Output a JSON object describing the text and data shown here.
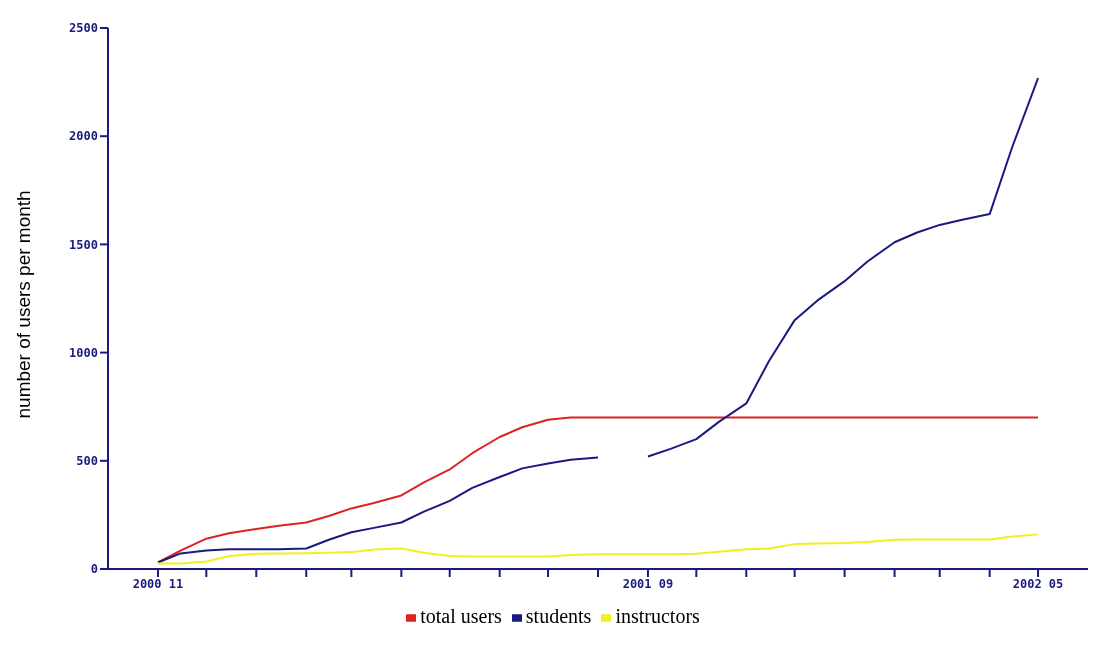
{
  "chart_data": {
    "type": "line",
    "ylabel": "number of users per month",
    "x": [
      "2000-11-01",
      "2000-11-15",
      "2000-12-01",
      "2000-12-15",
      "2001-01-01",
      "2001-01-15",
      "2001-02-01",
      "2001-02-15",
      "2001-03-01",
      "2001-03-15",
      "2001-04-01",
      "2001-04-15",
      "2001-05-01",
      "2001-05-15",
      "2001-06-01",
      "2001-06-15",
      "2001-07-01",
      "2001-07-15",
      "2001-08-01",
      "2001-08-15",
      "2001-09-01",
      "2001-09-15",
      "2001-10-01",
      "2001-10-15",
      "2001-11-01",
      "2001-11-15",
      "2001-12-01",
      "2001-12-15",
      "2002-01-01",
      "2002-01-15",
      "2002-02-01",
      "2002-02-15",
      "2002-03-01",
      "2002-03-15",
      "2002-04-01",
      "2002-04-15",
      "2002-05-01"
    ],
    "series": [
      {
        "name": "total users",
        "color": "#dd2222",
        "values": [
          30,
          85,
          140,
          165,
          185,
          200,
          215,
          245,
          280,
          305,
          340,
          400,
          460,
          535,
          610,
          655,
          690,
          700,
          700,
          700,
          700,
          700,
          700,
          700,
          700,
          700,
          700,
          700,
          700,
          700,
          700,
          700,
          700,
          700,
          700,
          700,
          700
        ]
      },
      {
        "name": "students",
        "color": "#1a1a80",
        "values": [
          30,
          72,
          85,
          91,
          91,
          91,
          95,
          135,
          170,
          190,
          215,
          265,
          315,
          375,
          425,
          465,
          488,
          505,
          515,
          null,
          520,
          555,
          600,
          680,
          765,
          960,
          1150,
          1240,
          1330,
          1420,
          1510,
          1555,
          1590,
          1614,
          1640,
          1950,
          2268
        ]
      },
      {
        "name": "instructors",
        "color": "#f0f020",
        "values": [
          25,
          25,
          35,
          60,
          70,
          72,
          73,
          75,
          78,
          90,
          95,
          75,
          60,
          58,
          58,
          58,
          58,
          65,
          68,
          68,
          68,
          68,
          70,
          80,
          91,
          95,
          115,
          118,
          120,
          125,
          135,
          136,
          136,
          136,
          136,
          150,
          160
        ]
      }
    ],
    "xlim": [
      "2000-10-01",
      "2002-06-01"
    ],
    "xticks": [
      {
        "value": "2000-11-01",
        "label": "2000 11"
      },
      {
        "value": "2000-12-01",
        "label": null
      },
      {
        "value": "2001-01-01",
        "label": null
      },
      {
        "value": "2001-02-01",
        "label": null
      },
      {
        "value": "2001-03-01",
        "label": null
      },
      {
        "value": "2001-04-01",
        "label": null
      },
      {
        "value": "2001-05-01",
        "label": null
      },
      {
        "value": "2001-06-01",
        "label": null
      },
      {
        "value": "2001-07-01",
        "label": null
      },
      {
        "value": "2001-08-01",
        "label": null
      },
      {
        "value": "2001-09-01",
        "label": "2001 09"
      },
      {
        "value": "2001-10-01",
        "label": null
      },
      {
        "value": "2001-11-01",
        "label": null
      },
      {
        "value": "2001-12-01",
        "label": null
      },
      {
        "value": "2002-01-01",
        "label": null
      },
      {
        "value": "2002-02-01",
        "label": null
      },
      {
        "value": "2002-03-01",
        "label": null
      },
      {
        "value": "2002-04-01",
        "label": null
      },
      {
        "value": "2002-05-01",
        "label": "2002 05"
      }
    ],
    "ylim": [
      0,
      2500
    ],
    "yticks": [
      0,
      500,
      1000,
      1500,
      2000,
      2500
    ],
    "grid": false,
    "legend": "bottom"
  }
}
